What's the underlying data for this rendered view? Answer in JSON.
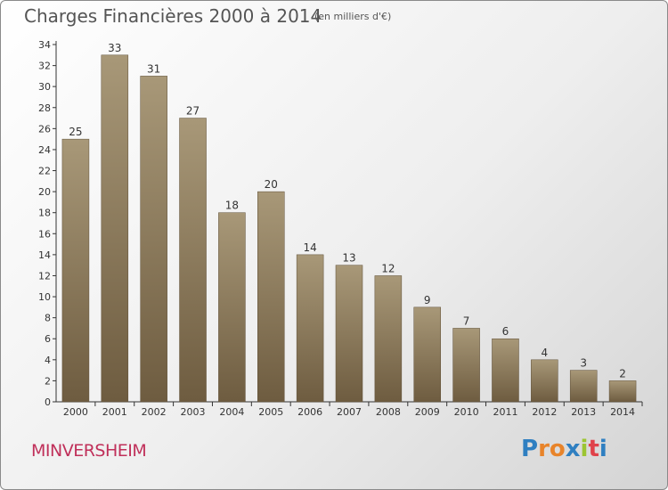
{
  "title": "Charges Financières 2000 à 2014",
  "subtitle": "(en milliers d'€)",
  "commune": "MINVERSHEIM",
  "logo": {
    "letters": [
      "P",
      "r",
      "o",
      "x",
      "i",
      "t",
      "i"
    ],
    "colors": [
      "#2f7fc1",
      "#e8842a",
      "#e8842a",
      "#2f7fc1",
      "#9cc532",
      "#e0424a",
      "#2f7fc1"
    ]
  },
  "colors": {
    "bar_top": "#a89878",
    "bar_bottom": "#6e5c40",
    "axis": "#333333",
    "text": "#333333"
  },
  "chart_data": {
    "type": "bar",
    "title": "Charges Financières 2000 à 2014",
    "subtitle": "(en milliers d'€)",
    "categories": [
      "2000",
      "2001",
      "2002",
      "2003",
      "2004",
      "2005",
      "2006",
      "2007",
      "2008",
      "2009",
      "2010",
      "2011",
      "2012",
      "2013",
      "2014"
    ],
    "values": [
      25,
      33,
      31,
      27,
      18,
      20,
      14,
      13,
      12,
      9,
      7,
      6,
      4,
      3,
      2
    ],
    "ylim": [
      0,
      34
    ],
    "yticks": [
      0,
      2,
      4,
      6,
      8,
      10,
      12,
      14,
      16,
      18,
      20,
      22,
      24,
      26,
      28,
      30,
      32,
      34
    ],
    "data_labels": true,
    "grid": false,
    "xlabel": "",
    "ylabel": ""
  }
}
